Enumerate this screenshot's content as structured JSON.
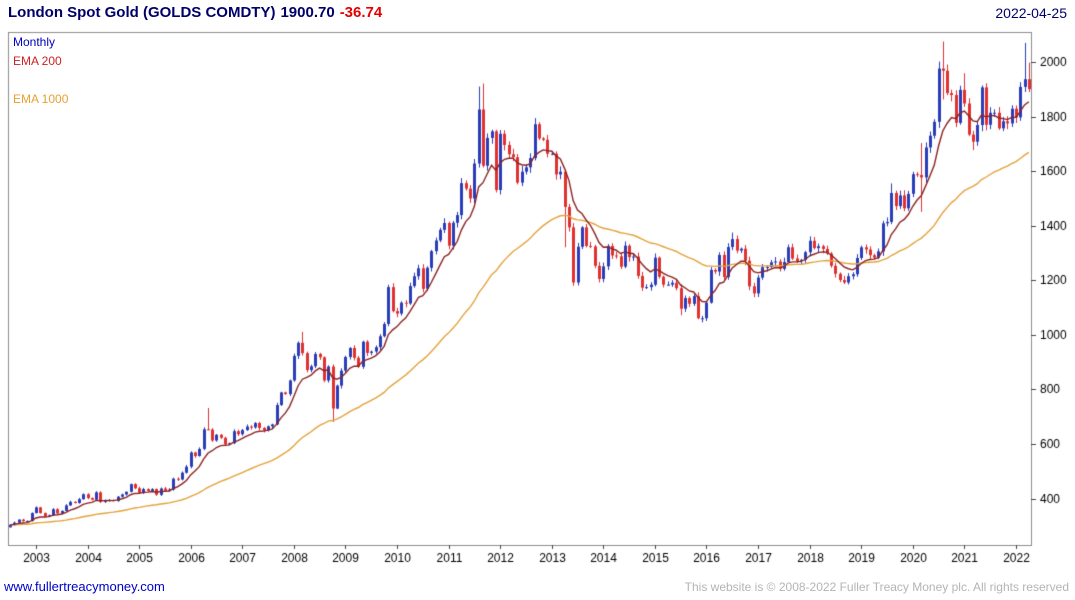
{
  "header": {
    "title": "London Spot Gold (GOLDS COMDTY)",
    "last_price": "1900.70",
    "change": "-36.74",
    "date": "2022-04-25"
  },
  "legend": {
    "interval": "Monthly",
    "ema200_label": "EMA 200",
    "ema1000_label": "EMA 1000"
  },
  "footer": {
    "link": "www.fullertreacymoney.com",
    "copyright": "This website is © 2008-2022 Fuller Treacy Money plc. All rights reserved"
  },
  "colors": {
    "header_text": "#00006b",
    "change": "#e60000",
    "legend_monthly": "#0000bb",
    "legend_ema200": "#cc2222",
    "legend_ema1000": "#e8a030",
    "up": "#2a3db8",
    "down": "#e03030",
    "ema200": "#8b2222",
    "ema1000": "#e2a23c",
    "border": "#8c8c8c",
    "tick": "#444444",
    "axis_text": "#000000",
    "link": "#0000c8",
    "copyright": "#b4b4b4"
  },
  "chart_data": {
    "type": "candlestick",
    "title": "London Spot Gold (GOLDS COMDTY)",
    "interval": "Monthly",
    "last_price": 1900.7,
    "change": -36.74,
    "as_of": "2022-04-25",
    "start_month": "2002-07",
    "end_month": "2022-04",
    "ylim": [
      230,
      2110
    ],
    "y_ticks": [
      400,
      600,
      800,
      1000,
      1200,
      1400,
      1600,
      1800,
      2000
    ],
    "x_tick_years": [
      2003,
      2004,
      2005,
      2006,
      2007,
      2008,
      2009,
      2010,
      2011,
      2012,
      2013,
      2014,
      2015,
      2016,
      2017,
      2018,
      2019,
      2020,
      2021,
      2022
    ],
    "overlays": [
      {
        "name": "EMA 200",
        "approx_months_span": 9
      },
      {
        "name": "EMA 1000",
        "approx_months_span": 46
      }
    ],
    "monthly_closes": [
      304,
      312,
      323,
      317,
      318,
      347,
      368,
      347,
      334,
      339,
      361,
      346,
      355,
      375,
      388,
      384,
      398,
      416,
      402,
      396,
      423,
      388,
      393,
      395,
      391,
      407,
      415,
      425,
      453,
      438,
      422,
      435,
      428,
      435,
      414,
      437,
      429,
      433,
      473,
      470,
      495,
      517,
      569,
      556,
      582,
      654,
      653,
      613,
      634,
      623,
      599,
      603,
      647,
      636,
      651,
      664,
      661,
      677,
      659,
      650,
      665,
      672,
      743,
      789,
      783,
      833,
      923,
      971,
      933,
      871,
      885,
      930,
      918,
      833,
      884,
      730,
      814,
      869,
      919,
      952,
      916,
      883,
      975,
      934,
      939,
      955,
      995,
      1040,
      1175,
      1087,
      1078,
      1118,
      1115,
      1179,
      1215,
      1244,
      1169,
      1246,
      1307,
      1346,
      1385,
      1410,
      1327,
      1411,
      1439,
      1556,
      1536,
      1500,
      1628,
      1826,
      1620,
      1722,
      1746,
      1531,
      1737,
      1696,
      1662,
      1651,
      1558,
      1598,
      1614,
      1648,
      1772,
      1720,
      1715,
      1664,
      1664,
      1588,
      1598,
      1469,
      1394,
      1192,
      1323,
      1394,
      1326,
      1324,
      1253,
      1205,
      1251,
      1326,
      1291,
      1288,
      1250,
      1327,
      1285,
      1287,
      1216,
      1173,
      1175,
      1184,
      1283,
      1213,
      1184,
      1184,
      1191,
      1171,
      1096,
      1135,
      1114,
      1142,
      1061,
      1061,
      1118,
      1238,
      1232,
      1293,
      1212,
      1322,
      1351,
      1309,
      1316,
      1272,
      1178,
      1152,
      1210,
      1248,
      1249,
      1266,
      1269,
      1242,
      1267,
      1321,
      1280,
      1271,
      1275,
      1303,
      1345,
      1318,
      1325,
      1315,
      1298,
      1253,
      1224,
      1201,
      1192,
      1215,
      1222,
      1282,
      1321,
      1313,
      1292,
      1283,
      1306,
      1409,
      1414,
      1520,
      1472,
      1511,
      1464,
      1517,
      1589,
      1586,
      1577,
      1687,
      1730,
      1781,
      1976,
      1968,
      1886,
      1879,
      1777,
      1898,
      1848,
      1734,
      1708,
      1769,
      1907,
      1770,
      1814,
      1814,
      1757,
      1783,
      1775,
      1829,
      1797,
      1909,
      1937,
      1900.7
    ],
    "wick_overrides": {
      "46": {
        "high": 732
      },
      "68": {
        "high": 1011
      },
      "75": {
        "low": 681
      },
      "109": {
        "high": 1910
      },
      "110": {
        "high": 1921
      },
      "113": {
        "low": 1522
      },
      "129": {
        "low": 1321
      },
      "131": {
        "low": 1180
      },
      "156": {
        "low": 1072
      },
      "161": {
        "low": 1046
      },
      "168": {
        "high": 1375
      },
      "205": {
        "high": 1555
      },
      "212": {
        "low": 1451,
        "high": 1703
      },
      "217": {
        "high": 2075,
        "low": 1863
      },
      "222": {
        "high": 1959
      },
      "224": {
        "low": 1677
      },
      "236": {
        "high": 2070,
        "low": 1890
      },
      "237": {
        "high": 1998,
        "low": 1890
      }
    }
  }
}
